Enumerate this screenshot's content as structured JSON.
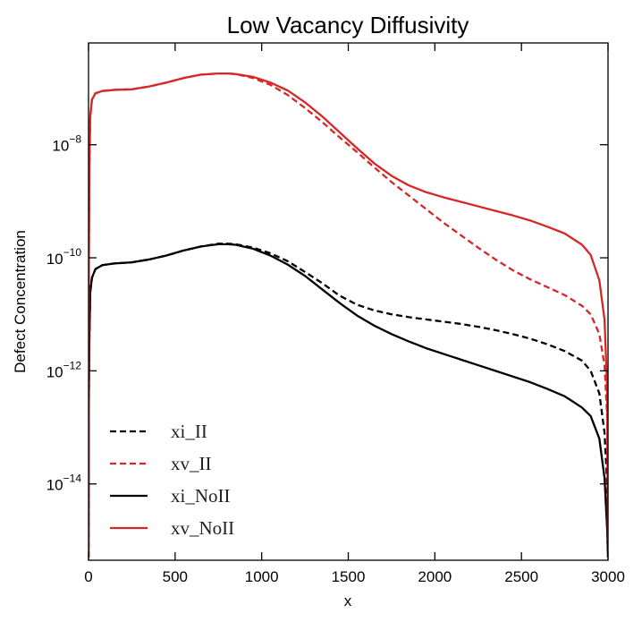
{
  "chart_data": {
    "type": "line",
    "title": "Low Vacancy Diffusivity",
    "xlabel": "x",
    "ylabel": "Defect Concentration",
    "xlim": [
      0,
      3000
    ],
    "ylim_log10": [
      -15.35,
      -6.2
    ],
    "yscale": "log",
    "x_ticks": [
      "0",
      "500",
      "1000",
      "1500",
      "2000",
      "2500",
      "3000"
    ],
    "y_ticks": [
      {
        "base": "10",
        "exp": "−8",
        "log10": -8
      },
      {
        "base": "10",
        "exp": "−10",
        "log10": -10
      },
      {
        "base": "10",
        "exp": "−12",
        "log10": -12
      },
      {
        "base": "10",
        "exp": "−14",
        "log10": -14
      }
    ],
    "grid": false,
    "legend_position": "lower-left",
    "series": [
      {
        "name": "xi_II",
        "color": "#000000",
        "style": "dashed",
        "x": [
          0,
          2,
          5,
          10,
          20,
          40,
          80,
          150,
          250,
          350,
          450,
          550,
          650,
          750,
          800,
          850,
          950,
          1050,
          1150,
          1250,
          1350,
          1450,
          1550,
          1650,
          1750,
          1850,
          1950,
          2050,
          2150,
          2250,
          2350,
          2450,
          2550,
          2650,
          2750,
          2850,
          2900,
          2950,
          2980,
          2995,
          3000
        ],
        "log10": [
          -15.3,
          -12.5,
          -11.4,
          -10.6,
          -10.35,
          -10.2,
          -10.13,
          -10.1,
          -10.08,
          -10.03,
          -9.96,
          -9.87,
          -9.8,
          -9.75,
          -9.75,
          -9.76,
          -9.82,
          -9.92,
          -10.06,
          -10.25,
          -10.45,
          -10.67,
          -10.83,
          -10.93,
          -11.0,
          -11.05,
          -11.09,
          -11.13,
          -11.17,
          -11.22,
          -11.28,
          -11.35,
          -11.43,
          -11.53,
          -11.65,
          -11.82,
          -12.0,
          -12.4,
          -13.1,
          -14.0,
          -15.3
        ]
      },
      {
        "name": "xv_II",
        "color": "#d62728",
        "style": "dashed",
        "x": [
          0,
          2,
          5,
          10,
          20,
          40,
          80,
          150,
          250,
          350,
          450,
          550,
          650,
          750,
          800,
          850,
          950,
          1050,
          1150,
          1250,
          1350,
          1450,
          1550,
          1650,
          1750,
          1850,
          1950,
          2050,
          2150,
          2250,
          2350,
          2450,
          2550,
          2650,
          2750,
          2850,
          2900,
          2950,
          2980,
          2995,
          3000
        ],
        "log10": [
          -15.3,
          -10.0,
          -8.4,
          -7.5,
          -7.2,
          -7.09,
          -7.05,
          -7.03,
          -7.02,
          -6.97,
          -6.9,
          -6.82,
          -6.76,
          -6.74,
          -6.74,
          -6.75,
          -6.82,
          -6.94,
          -7.12,
          -7.35,
          -7.6,
          -7.87,
          -8.13,
          -8.4,
          -8.66,
          -8.9,
          -9.14,
          -9.38,
          -9.6,
          -9.82,
          -10.03,
          -10.22,
          -10.38,
          -10.52,
          -10.66,
          -10.85,
          -11.0,
          -11.35,
          -11.9,
          -12.8,
          -15.0
        ]
      },
      {
        "name": "xi_NoII",
        "color": "#000000",
        "style": "solid",
        "x": [
          0,
          2,
          5,
          10,
          20,
          40,
          80,
          150,
          250,
          350,
          450,
          550,
          650,
          750,
          800,
          850,
          950,
          1050,
          1150,
          1250,
          1350,
          1450,
          1550,
          1650,
          1750,
          1850,
          1950,
          2050,
          2150,
          2250,
          2350,
          2450,
          2550,
          2650,
          2750,
          2850,
          2900,
          2950,
          2980,
          2995,
          3000
        ],
        "log10": [
          -15.3,
          -12.5,
          -11.4,
          -10.6,
          -10.35,
          -10.2,
          -10.13,
          -10.1,
          -10.08,
          -10.03,
          -9.96,
          -9.87,
          -9.8,
          -9.76,
          -9.76,
          -9.77,
          -9.84,
          -9.96,
          -10.12,
          -10.32,
          -10.56,
          -10.8,
          -11.02,
          -11.2,
          -11.35,
          -11.48,
          -11.6,
          -11.7,
          -11.8,
          -11.9,
          -12.0,
          -12.1,
          -12.2,
          -12.32,
          -12.45,
          -12.65,
          -12.8,
          -13.2,
          -13.9,
          -14.8,
          -15.3
        ]
      },
      {
        "name": "xv_NoII",
        "color": "#d62728",
        "style": "solid",
        "x": [
          0,
          2,
          5,
          10,
          20,
          40,
          80,
          150,
          250,
          350,
          450,
          550,
          650,
          750,
          800,
          850,
          950,
          1050,
          1150,
          1250,
          1350,
          1450,
          1550,
          1650,
          1750,
          1850,
          1950,
          2050,
          2150,
          2250,
          2350,
          2450,
          2550,
          2650,
          2750,
          2850,
          2900,
          2950,
          2980,
          2995,
          3000
        ],
        "log10": [
          -15.3,
          -10.0,
          -8.4,
          -7.5,
          -7.2,
          -7.09,
          -7.05,
          -7.03,
          -7.02,
          -6.97,
          -6.9,
          -6.82,
          -6.76,
          -6.74,
          -6.74,
          -6.75,
          -6.8,
          -6.9,
          -7.04,
          -7.25,
          -7.5,
          -7.78,
          -8.06,
          -8.33,
          -8.55,
          -8.72,
          -8.84,
          -8.93,
          -9.01,
          -9.09,
          -9.17,
          -9.25,
          -9.34,
          -9.45,
          -9.57,
          -9.77,
          -9.95,
          -10.4,
          -11.1,
          -12.3,
          -15.0
        ]
      }
    ]
  }
}
